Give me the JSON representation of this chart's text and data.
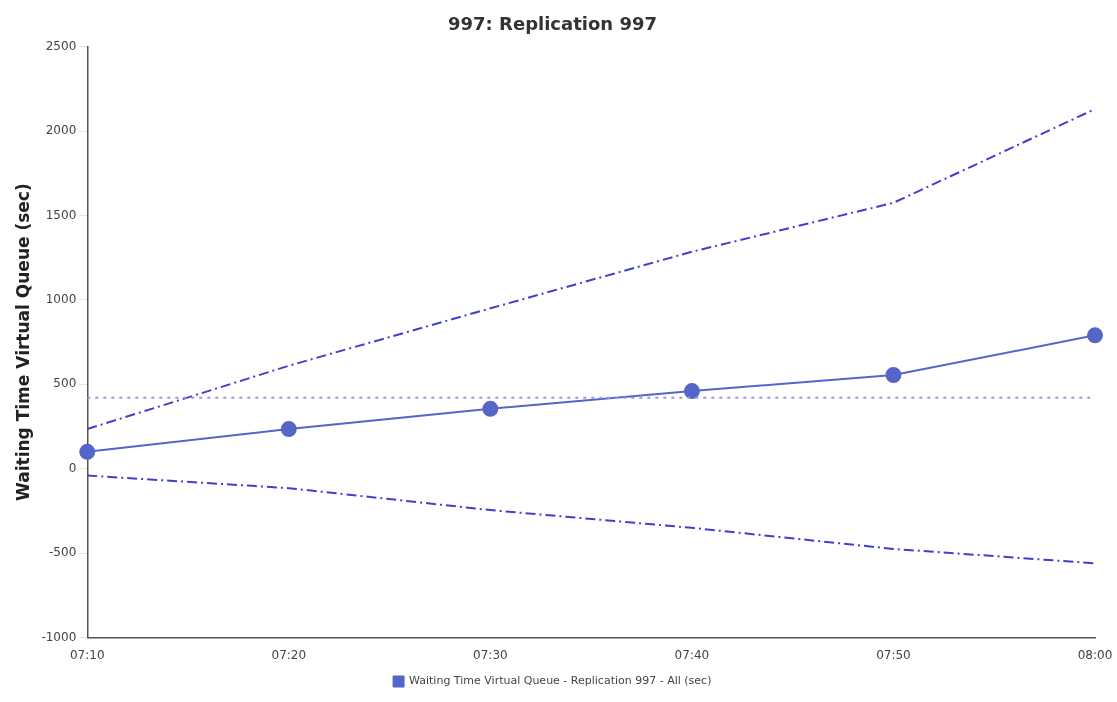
{
  "chart_data": {
    "type": "line",
    "title": "997: Replication 997",
    "ylabel": "Waiting Time Virtual Queue (sec)",
    "categories": [
      "07:10",
      "07:20",
      "07:30",
      "07:40",
      "07:50",
      "08:00"
    ],
    "series": [
      {
        "name": "Waiting Time Virtual Queue - Replication 997 - All (sec)",
        "color": "#5565c8",
        "values": [
          100,
          235,
          355,
          460,
          555,
          790
        ],
        "marker": "circle",
        "line_style": "solid"
      },
      {
        "color": "#4040cc",
        "values": [
          235,
          610,
          950,
          1285,
          1575,
          2130
        ],
        "marker": "none",
        "line_style": "dashed"
      },
      {
        "color": "#4040cc",
        "values": [
          -40,
          -115,
          -245,
          -350,
          -475,
          -560
        ],
        "marker": "none",
        "line_style": "dashed"
      }
    ],
    "ref_lines": [
      {
        "axis": "y",
        "value": 420,
        "color": "#a090e8",
        "line_style": "dotted"
      }
    ],
    "ylim": [
      -1000,
      2500
    ],
    "yticks": [
      -1000,
      -500,
      0,
      500,
      1000,
      1500,
      2000,
      2500
    ],
    "grid": false,
    "legend": "bottom"
  }
}
